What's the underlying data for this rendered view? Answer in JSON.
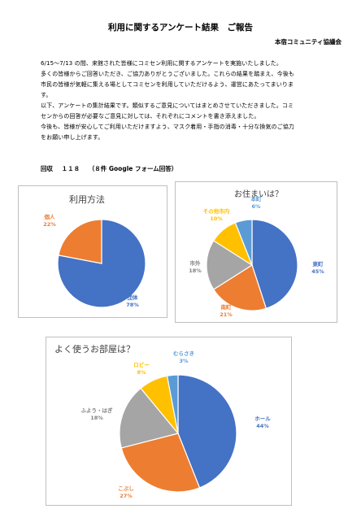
{
  "document": {
    "title": "利用に関するアンケート結果　ご報告",
    "organization": "本宿コミュニティ協議会",
    "body_lines": [
      "6/15～7/13 の間、来館された皆様にコミセン利用に関するアンケートを実施いたしました。",
      "多くの皆様からご回答いただき、ご協力ありがとうございました。これらの結果を踏まえ、今後も",
      "市民の皆様が気軽に集える場としてコミセンを利用していただけるよう、運営にあたってまいりま",
      "す。",
      "以下、アンケートの集計結果です。類似するご意見についてはまとめさせていただきました。コミ",
      "センからの回答が必要なご意見に対しては、それぞれにコメントを書き添えました。",
      "今後も、皆様が安心してご利用いただけますよう、マスク着用・手指の消毒・十分な換気のご協力",
      "をお願い申し上げます。"
    ],
    "responses_label": "回収",
    "responses_count": "１１８",
    "responses_note": "（８件 Google フォーム回答）"
  },
  "chart_data": [
    {
      "type": "pie",
      "title": "利用方法",
      "slices": [
        {
          "label": "団体",
          "value": 78,
          "value_text": "78%",
          "color": "#4472C4"
        },
        {
          "label": "個人",
          "value": 22,
          "value_text": "22%",
          "color": "#ED7D31"
        }
      ]
    },
    {
      "type": "pie",
      "title": "お住まいは？",
      "slices": [
        {
          "label": "東町",
          "value": 45,
          "value_text": "45%",
          "color": "#4472C4"
        },
        {
          "label": "南町",
          "value": 21,
          "value_text": "21%",
          "color": "#ED7D31"
        },
        {
          "label": "市外",
          "value": 18,
          "value_text": "18%",
          "color": "#A5A5A5"
        },
        {
          "label": "その他市内",
          "value": 10,
          "value_text": "10%",
          "color": "#FFC000"
        },
        {
          "label": "本町",
          "value": 6,
          "value_text": "6%",
          "color": "#5B9BD5"
        }
      ]
    },
    {
      "type": "pie",
      "title": "よく使うお部屋は？",
      "slices": [
        {
          "label": "ホール",
          "value": 44,
          "value_text": "44%",
          "color": "#4472C4"
        },
        {
          "label": "こぶし",
          "value": 27,
          "value_text": "27%",
          "color": "#ED7D31"
        },
        {
          "label": "ふよう・はぎ",
          "value": 18,
          "value_text": "18%",
          "color": "#A5A5A5"
        },
        {
          "label": "ロビー",
          "value": 8,
          "value_text": "8%",
          "color": "#FFC000"
        },
        {
          "label": "むらさき",
          "value": 3,
          "value_text": "3%",
          "color": "#5B9BD5"
        }
      ]
    }
  ]
}
